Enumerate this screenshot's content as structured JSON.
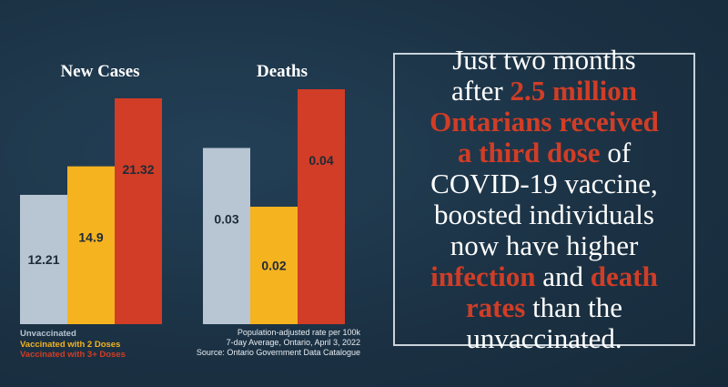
{
  "chart_data": [
    {
      "type": "bar",
      "title": "New Cases",
      "categories": [
        "Unvaccinated",
        "Vaccinated with 2 Doses",
        "Vaccinated with 3+ Doses"
      ],
      "values": [
        12.21,
        14.9,
        21.32
      ],
      "value_labels": [
        "12.21",
        "14.9",
        "21.32"
      ],
      "ylim": [
        0,
        21.32
      ]
    },
    {
      "type": "bar",
      "title": "Deaths",
      "categories": [
        "Unvaccinated",
        "Vaccinated with 2 Doses",
        "Vaccinated with 3+ Doses"
      ],
      "values": [
        0.03,
        0.02,
        0.04
      ],
      "value_labels": [
        "0.03",
        "0.02",
        "0.04"
      ],
      "ylim": [
        0,
        0.04
      ]
    }
  ],
  "legend": [
    {
      "label": "Unvaccinated",
      "color": "#b8c5d3"
    },
    {
      "label": "Vaccinated with 2 Doses",
      "color": "#f5b320"
    },
    {
      "label": "Vaccinated with 3+ Doses",
      "color": "#d13d26"
    }
  ],
  "source_lines": [
    "Population-adjusted rate per 100k",
    "7-day Average, Ontario, April 3, 2022",
    "Source: Ontario Government Data Catalogue"
  ],
  "message": {
    "line1": "Just two months",
    "line2_pre": "after ",
    "line2_hl": "2.5 million",
    "line3_hl": "Ontarians received",
    "line4_hl": "a third dose",
    "line4_post": " of",
    "line5": "COVID-19 vaccine,",
    "line6": "boosted individuals",
    "line7": "now have higher",
    "line8_hl1": "infection",
    "line8_mid": " and ",
    "line8_hl2": "death",
    "line9_hl": "rates",
    "line9_post": " than the",
    "line10": "unvaccinated."
  },
  "colors": {
    "background": "#1d3446",
    "unvaccinated": "#b8c5d3",
    "two_doses": "#f5b320",
    "three_doses": "#d13d26",
    "value_label": "#1d2b38"
  }
}
